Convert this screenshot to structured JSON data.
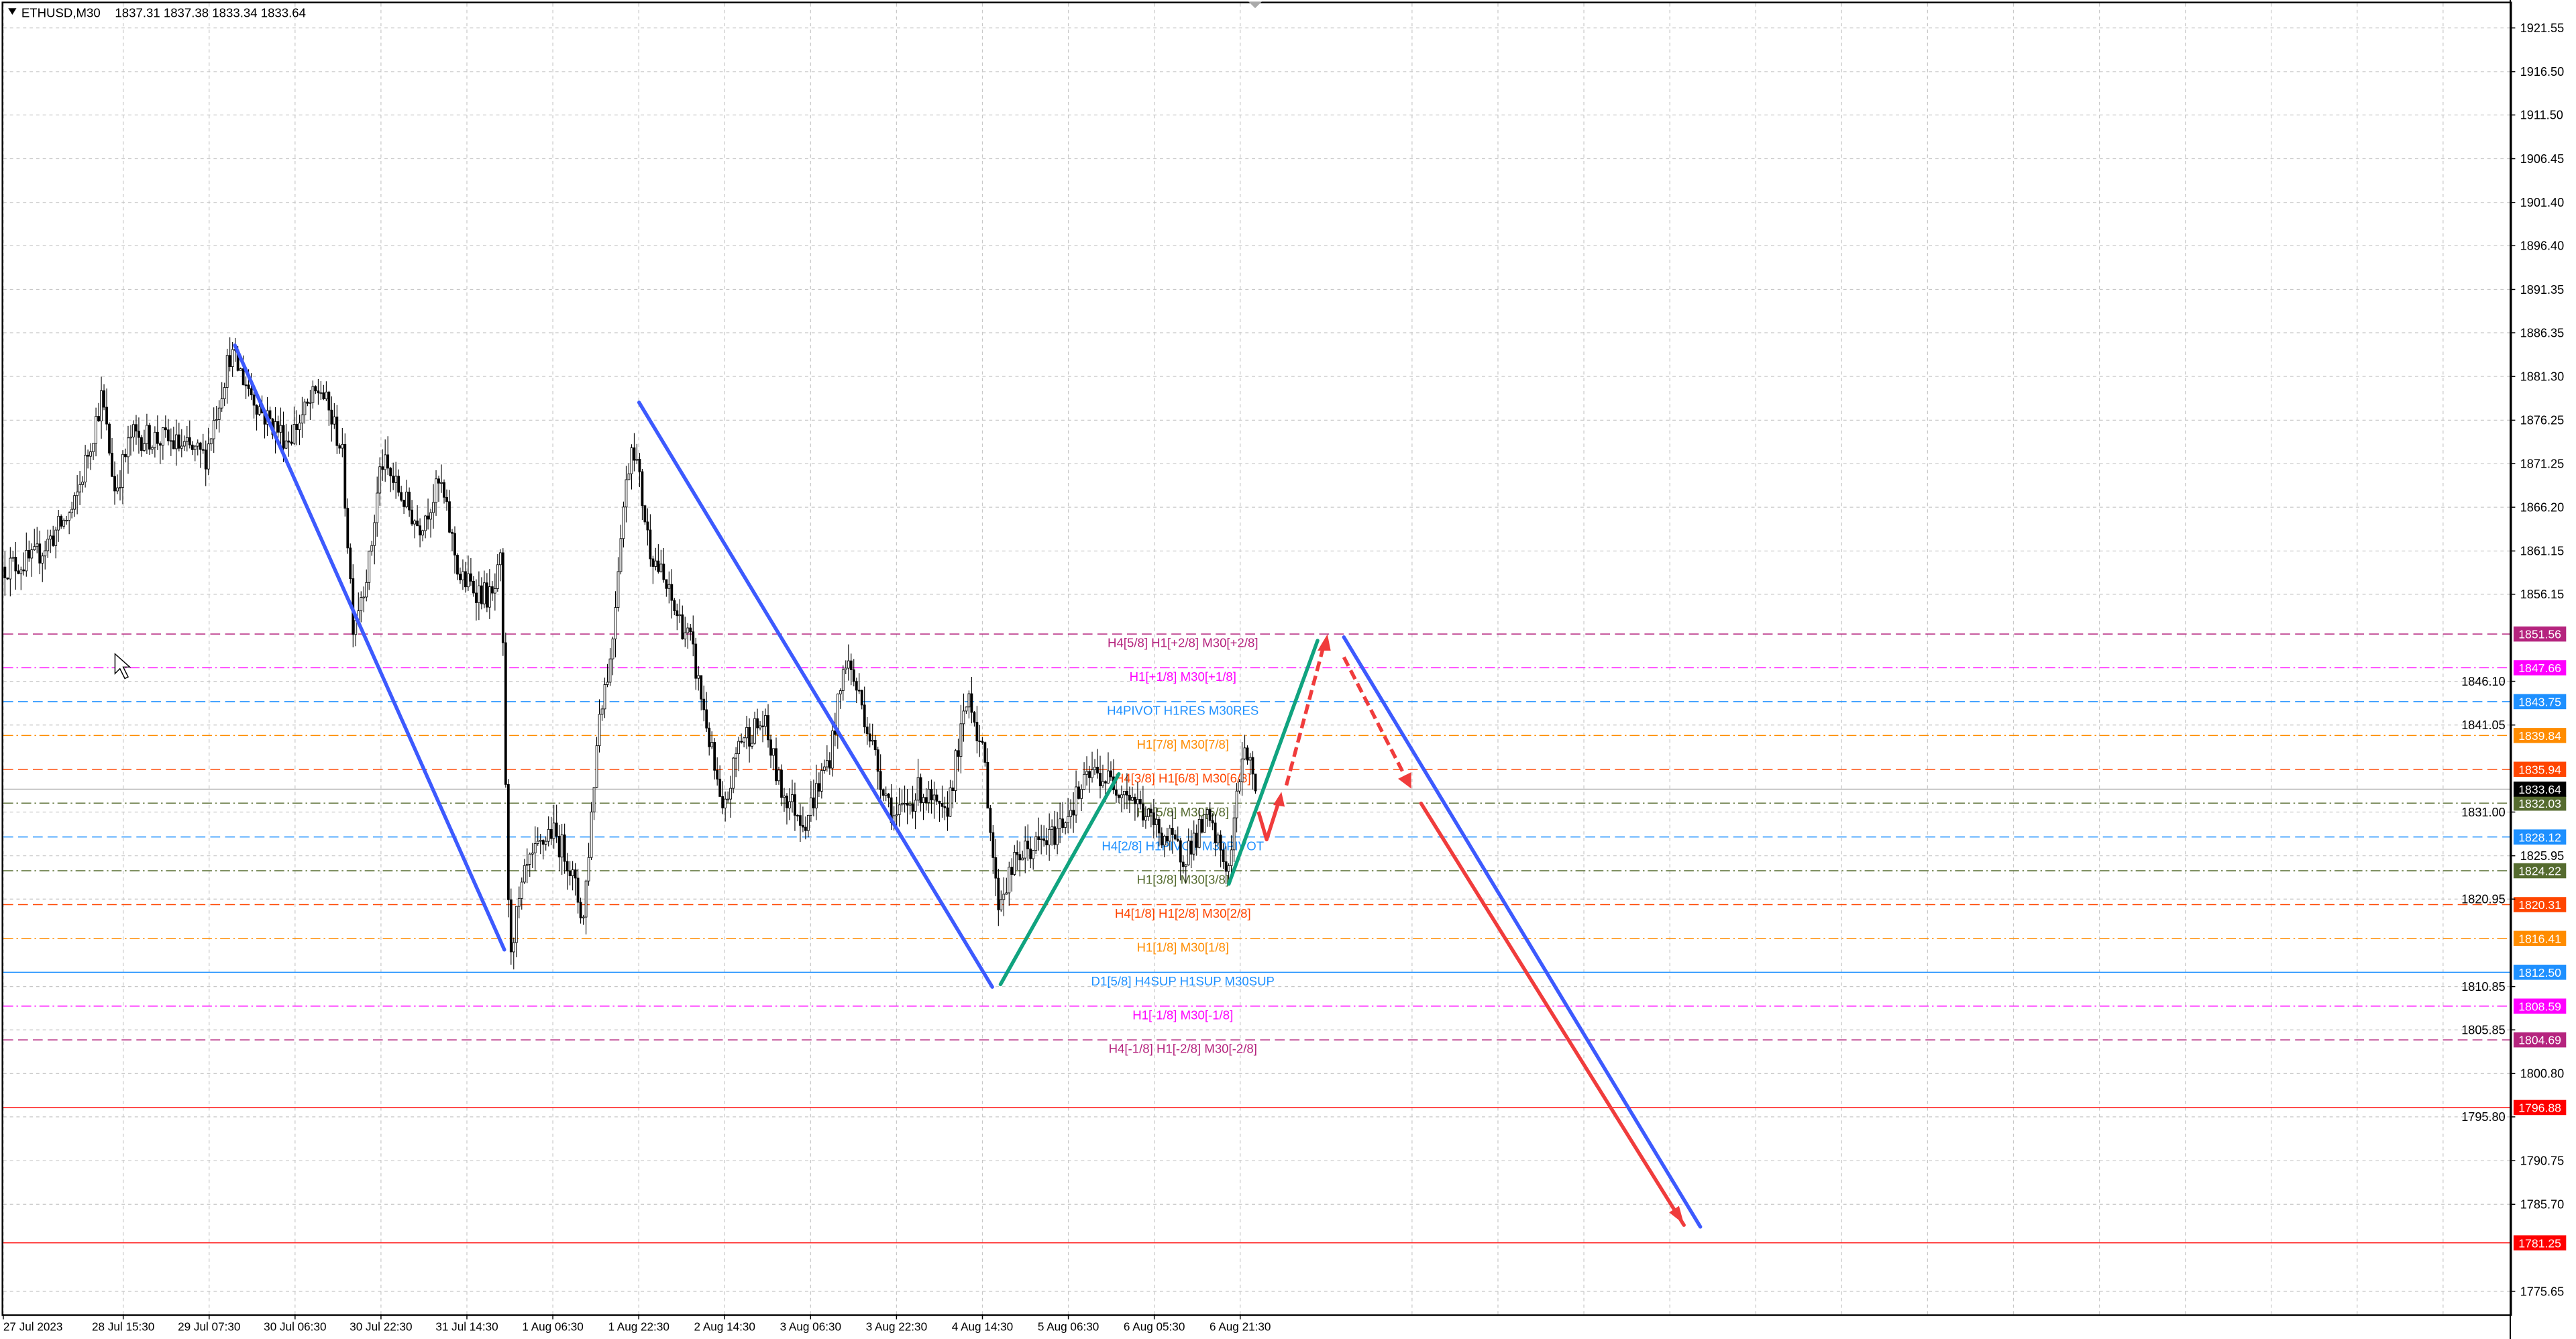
{
  "header": {
    "symbol_label": "ETHUSD,M30",
    "ohlc": "1837.31 1837.38 1833.34 1833.64",
    "menu_icon": "triangle-down-icon"
  },
  "chart_data": {
    "type": "candlestick",
    "symbol": "ETHUSD",
    "timeframe": "M30",
    "last_bar": {
      "open": 1837.31,
      "high": 1837.38,
      "low": 1833.34,
      "close": 1833.64
    },
    "ylim": [
      1775.65,
      1921.55
    ],
    "grid": true,
    "price_ticks": [
      "1921.55",
      "1916.50",
      "1911.50",
      "1906.45",
      "1901.40",
      "1896.40",
      "1891.35",
      "1886.35",
      "1881.30",
      "1876.25",
      "1871.25",
      "1866.20",
      "1861.15",
      "1856.15",
      "1846.10",
      "1841.05",
      "1831.00",
      "1825.95",
      "1820.95",
      "1810.85",
      "1805.85",
      "1800.80",
      "1795.80",
      "1790.75",
      "1785.70",
      "1775.65"
    ],
    "time_ticks": [
      "27 Jul 2023",
      "28 Jul 15:30",
      "29 Jul 07:30",
      "30 Jul 06:30",
      "30 Jul 22:30",
      "31 Jul 14:30",
      "1 Aug 06:30",
      "1 Aug 22:30",
      "2 Aug 14:30",
      "3 Aug 06:30",
      "3 Aug 22:30",
      "4 Aug 14:30",
      "5 Aug 06:30",
      "6 Aug 05:30",
      "6 Aug 21:30"
    ],
    "current_price": {
      "value": "1833.64",
      "color": "#000000"
    },
    "levels": [
      {
        "value": "1851.56",
        "label": "H4[5/8] H1[+2/8] M30[+2/8]",
        "color": "#b5247e",
        "style": "dash"
      },
      {
        "value": "1847.66",
        "label": "H1[+1/8] M30[+1/8]",
        "color": "#ff00ff",
        "style": "dashdot"
      },
      {
        "value": "1843.75",
        "label": "H4PIVOT H1RES M30RES",
        "color": "#1e90ff",
        "style": "dash"
      },
      {
        "value": "1839.84",
        "label": "H1[7/8] M30[7/8]",
        "color": "#ff8c00",
        "style": "dashdot"
      },
      {
        "value": "1835.94",
        "label": "H4[3/8] H1[6/8] M30[6/8]",
        "color": "#ff4500",
        "style": "dash"
      },
      {
        "value": "1832.03",
        "label": "H1[5/8] M30[5/8]",
        "color": "#556b2f",
        "style": "dashdot"
      },
      {
        "value": "1828.12",
        "label": "H4[2/8] H1PIVOT M30PIVOT",
        "color": "#1e90ff",
        "style": "dash"
      },
      {
        "value": "1824.22",
        "label": "H1[3/8] M30[3/8]",
        "color": "#556b2f",
        "style": "dashdot"
      },
      {
        "value": "1820.31",
        "label": "H4[1/8] H1[2/8] M30[2/8]",
        "color": "#ff4500",
        "style": "dash"
      },
      {
        "value": "1816.41",
        "label": "H1[1/8] M30[1/8]",
        "color": "#ff8c00",
        "style": "dashdot"
      },
      {
        "value": "1812.50",
        "label": "D1[5/8] H4SUP H1SUP M30SUP",
        "color": "#1e90ff",
        "style": "solid"
      },
      {
        "value": "1808.59",
        "label": "H1[-1/8] M30[-1/8]",
        "color": "#ff00ff",
        "style": "dashdot"
      },
      {
        "value": "1804.69",
        "label": "H4[-1/8] H1[-2/8] M30[-2/8]",
        "color": "#b5247e",
        "style": "dash"
      },
      {
        "value": "1796.88",
        "label": "",
        "color": "#ff0000",
        "style": "solid"
      },
      {
        "value": "1781.25",
        "label": "",
        "color": "#ff0000",
        "style": "solid"
      }
    ],
    "trendlines": [
      {
        "name": "down-channel-1",
        "color": "#3d5afe",
        "from_price": 1884.9,
        "to_price": 1815.1
      },
      {
        "name": "down-channel-2",
        "color": "#3d5afe",
        "from_price": 1878.3,
        "to_price": 1810.8
      },
      {
        "name": "up-leg-1",
        "color": "#10a37f",
        "from_price": 1811.1,
        "to_price": 1835.4
      },
      {
        "name": "up-leg-2",
        "color": "#10a37f",
        "from_price": 1822.7,
        "to_price": 1850.8
      },
      {
        "name": "projected-down",
        "color": "#3d5afe",
        "from_price": 1851.2,
        "to_price": 1783.1
      },
      {
        "name": "projected-down-red",
        "color": "#f03c3c",
        "from_price": 1832.0,
        "to_price": 1783.3
      }
    ],
    "colors": {
      "up_candle": "#ffffff",
      "down_candle": "#000000",
      "grid": "#c8c8c8",
      "projection": "#f03c3c"
    }
  }
}
